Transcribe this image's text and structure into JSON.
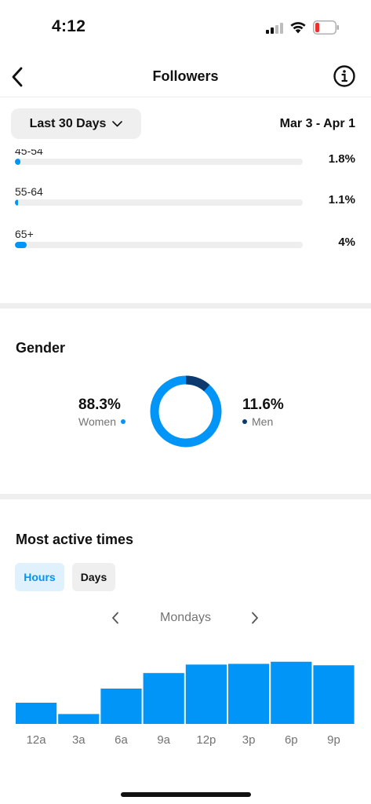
{
  "status_bar": {
    "time": "4:12"
  },
  "nav": {
    "title": "Followers"
  },
  "filter": {
    "range_label": "Last 30 Days",
    "date_range": "Mar 3 - Apr 1"
  },
  "age_rows": [
    {
      "label": "45-54",
      "percent_text": "1.8%",
      "value": 1.8
    },
    {
      "label": "55-64",
      "percent_text": "1.1%",
      "value": 1.1
    },
    {
      "label": "65+",
      "percent_text": "4%",
      "value": 4
    }
  ],
  "gender": {
    "title": "Gender",
    "women": {
      "percent_text": "88.3%",
      "label": "Women",
      "value": 88.3,
      "color": "#0095f6"
    },
    "men": {
      "percent_text": "11.6%",
      "label": "Men",
      "value": 11.6,
      "color": "#0d3a6e"
    }
  },
  "active_times": {
    "title": "Most active times",
    "tabs": [
      {
        "label": "Hours",
        "selected": true
      },
      {
        "label": "Days",
        "selected": false
      }
    ],
    "day_label": "Mondays"
  },
  "chart_data": {
    "type": "bar",
    "categories": [
      "12a",
      "3a",
      "6a",
      "9a",
      "12p",
      "3p",
      "6p",
      "9p"
    ],
    "values": [
      30,
      14,
      50,
      72,
      84,
      85,
      88,
      83
    ],
    "ylim": [
      0,
      100
    ],
    "grid": false,
    "color": "#0095f6"
  },
  "colors": {
    "accent": "#0095f6",
    "dark_accent": "#0d3a6e",
    "track": "#eeeeee"
  },
  "icons": {
    "back": "chevron-left-icon",
    "info": "info-icon",
    "dropdown": "chevron-down-icon",
    "prev": "chevron-left-icon",
    "next": "chevron-right-icon"
  }
}
